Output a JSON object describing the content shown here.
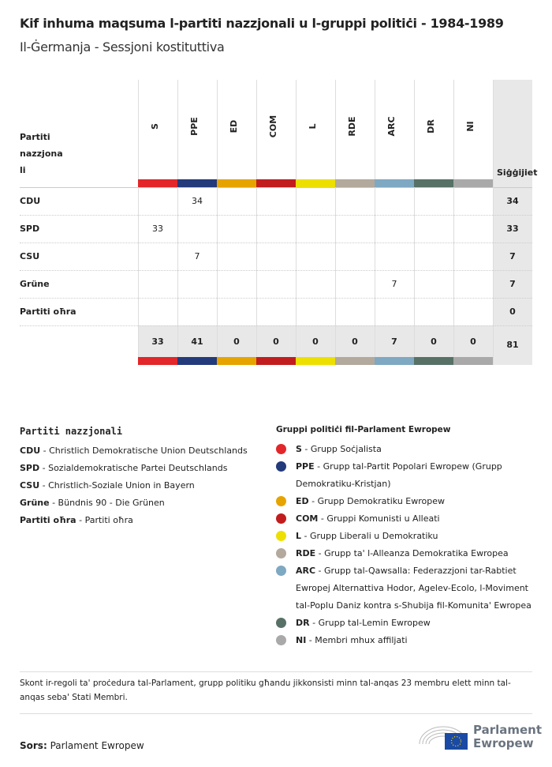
{
  "title": "Kif inhuma maqsuma l-partiti nazzjonali u l-gruppi politiċi - 1984-1989",
  "subtitle": "Il-Ġermanja - Sessjoni kostituttiva",
  "table": {
    "row_header": "Partiti nazzjona li",
    "total_header": "Siġġijiet",
    "groups": [
      {
        "code": "S",
        "color": "#e2262a"
      },
      {
        "code": "PPE",
        "color": "#233a7b"
      },
      {
        "code": "ED",
        "color": "#e6a400"
      },
      {
        "code": "COM",
        "color": "#c21d1e"
      },
      {
        "code": "L",
        "color": "#ede000"
      },
      {
        "code": "RDE",
        "color": "#b3a99c"
      },
      {
        "code": "ARC",
        "color": "#7fa8c2"
      },
      {
        "code": "DR",
        "color": "#577167"
      },
      {
        "code": "NI",
        "color": "#a9a9a9"
      }
    ],
    "rows": [
      {
        "party": "CDU",
        "values": [
          "",
          "34",
          "",
          "",
          "",
          "",
          "",
          "",
          ""
        ],
        "total": "34"
      },
      {
        "party": "SPD",
        "values": [
          "33",
          "",
          "",
          "",
          "",
          "",
          "",
          "",
          ""
        ],
        "total": "33"
      },
      {
        "party": "CSU",
        "values": [
          "",
          "7",
          "",
          "",
          "",
          "",
          "",
          "",
          ""
        ],
        "total": "7"
      },
      {
        "party": "Grüne",
        "values": [
          "",
          "",
          "",
          "",
          "",
          "",
          "7",
          "",
          ""
        ],
        "total": "7"
      },
      {
        "party": "Partiti oħra",
        "values": [
          "",
          "",
          "",
          "",
          "",
          "",
          "",
          "",
          ""
        ],
        "total": "0"
      }
    ],
    "totals": [
      "33",
      "41",
      "0",
      "0",
      "0",
      "0",
      "7",
      "0",
      "0"
    ],
    "grand_total": "81"
  },
  "legend_parties": {
    "title": "Partiti nazzjonali",
    "items": [
      {
        "code": "CDU",
        "name": "Christlich Demokratische Union Deutschlands"
      },
      {
        "code": "SPD",
        "name": "Sozialdemokratische Partei Deutschlands"
      },
      {
        "code": "CSU",
        "name": "Christlich-Soziale Union in Bayern"
      },
      {
        "code": "Grüne",
        "name": "Bündnis 90 - Die Grünen"
      },
      {
        "code": "Partiti oħra",
        "name": "Partiti oħra"
      }
    ]
  },
  "legend_groups": {
    "title": "Gruppi politiċi fil-Parlament Ewropew",
    "items": [
      {
        "code": "S",
        "name": "Grupp Soċjalista",
        "color": "#e2262a"
      },
      {
        "code": "PPE",
        "name": "Grupp tal-Partit Popolari Ewropew (Grupp Demokratiku-Kristjan)",
        "color": "#233a7b"
      },
      {
        "code": "ED",
        "name": "Grupp Demokratiku Ewropew",
        "color": "#e6a400"
      },
      {
        "code": "COM",
        "name": "Gruppi Komunisti u Alleati",
        "color": "#c21d1e"
      },
      {
        "code": "L",
        "name": "Grupp Liberali u Demokratiku",
        "color": "#ede000"
      },
      {
        "code": "RDE",
        "name": "Grupp ta' l-Alleanza Demokratika Ewropea",
        "color": "#b3a99c"
      },
      {
        "code": "ARC",
        "name": "Grupp tal-Qawsalla: Federazzjoni tar-Rabtiet Ewropej Alternattiva Hodor, Agelev-Ecolo, l-Moviment tal-Poplu Daniz kontra s-Shubija fil-Komunita' Ewropea",
        "color": "#7fa8c2"
      },
      {
        "code": "DR",
        "name": "Grupp tal-Lemin Ewropew",
        "color": "#577167"
      },
      {
        "code": "NI",
        "name": "Membri mhux affiljati",
        "color": "#a9a9a9"
      }
    ]
  },
  "note": "Skont ir-regoli ta' proċedura tal-Parlament, grupp politiku għandu jikkonsisti minn tal-anqas 23 membru elett minn tal-anqas seba' Stati Membri.",
  "source": {
    "label": "Sors:",
    "value": "Parlament Ewropew"
  },
  "logo": {
    "text1": "Parlament",
    "text2": "Ewropew"
  }
}
